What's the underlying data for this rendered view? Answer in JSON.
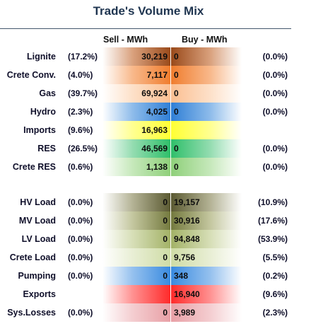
{
  "title": "Trade's Volume Mix",
  "headers": {
    "sell": "Sell - MWh",
    "buy": "Buy - MWh"
  },
  "colors": {
    "lignite": "#9a4a1a",
    "crete_conv": "#f07d2e",
    "gas": "#fbbf92",
    "hydro": "#2f7fd6",
    "imports": "#ffff33",
    "res": "#2fbf6a",
    "crete_res": "#8fd07a",
    "hv_load": "#5b5a32",
    "mv_load": "#747a3e",
    "lv_load": "#a3b267",
    "crete_load": "#cfdca6",
    "pumping": "#3a8be0",
    "exports": "#ff2a2a",
    "sys_losses": "#e8a0a6"
  },
  "rows": [
    {
      "label": "Lignite",
      "sell_pct": "(17.2%)",
      "sell": "30,219",
      "buy": "0",
      "buy_pct": "(0.0%)"
    },
    {
      "label": "Crete Conv.",
      "sell_pct": "(4.0%)",
      "sell": "7,117",
      "buy": "0",
      "buy_pct": "(0.0%)"
    },
    {
      "label": "Gas",
      "sell_pct": "(39.7%)",
      "sell": "69,924",
      "buy": "0",
      "buy_pct": "(0.0%)"
    },
    {
      "label": "Hydro",
      "sell_pct": "(2.3%)",
      "sell": "4,025",
      "buy": "0",
      "buy_pct": "(0.0%)"
    },
    {
      "label": "Imports",
      "sell_pct": "(9.6%)",
      "sell": "16,963",
      "buy": "",
      "buy_pct": ""
    },
    {
      "label": "RES",
      "sell_pct": "(26.5%)",
      "sell": "46,569",
      "buy": "0",
      "buy_pct": "(0.0%)"
    },
    {
      "label": "Crete RES",
      "sell_pct": "(0.6%)",
      "sell": "1,138",
      "buy": "0",
      "buy_pct": "(0.0%)"
    },
    {
      "label": "HV Load",
      "sell_pct": "(0.0%)",
      "sell": "0",
      "buy": "19,157",
      "buy_pct": "(10.9%)"
    },
    {
      "label": "MV Load",
      "sell_pct": "(0.0%)",
      "sell": "0",
      "buy": "30,916",
      "buy_pct": "(17.6%)"
    },
    {
      "label": "LV Load",
      "sell_pct": "(0.0%)",
      "sell": "0",
      "buy": "94,848",
      "buy_pct": "(53.9%)"
    },
    {
      "label": "Crete Load",
      "sell_pct": "(0.0%)",
      "sell": "0",
      "buy": "9,756",
      "buy_pct": "(5.5%)"
    },
    {
      "label": "Pumping",
      "sell_pct": "(0.0%)",
      "sell": "0",
      "buy": "348",
      "buy_pct": "(0.2%)"
    },
    {
      "label": "Exports",
      "sell_pct": "",
      "sell": "",
      "buy": "16,940",
      "buy_pct": "(9.6%)"
    },
    {
      "label": "Sys.Losses",
      "sell_pct": "(0.0%)",
      "sell": "0",
      "buy": "3,989",
      "buy_pct": "(2.3%)"
    }
  ]
}
